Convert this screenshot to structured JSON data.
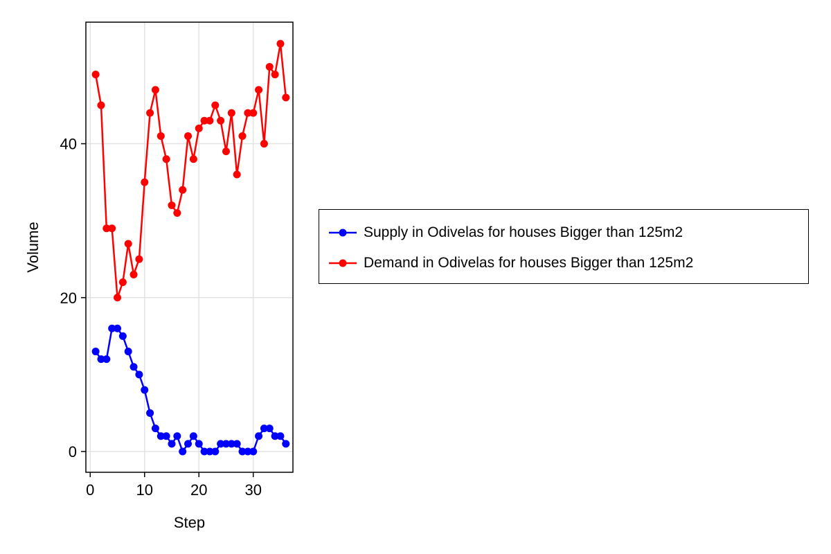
{
  "chart_data": {
    "type": "line",
    "title": "",
    "xlabel": "Step",
    "ylabel": "Volume",
    "xlim": [
      -0.8,
      37.3
    ],
    "ylim": [
      -2.7,
      55.8
    ],
    "xticks": [
      0,
      10,
      20,
      30
    ],
    "yticks": [
      0,
      20,
      40
    ],
    "grid": true,
    "legend_position": "right",
    "x": [
      1,
      2,
      3,
      4,
      5,
      6,
      7,
      8,
      9,
      10,
      11,
      12,
      13,
      14,
      15,
      16,
      17,
      18,
      19,
      20,
      21,
      22,
      23,
      24,
      25,
      26,
      27,
      28,
      29,
      30,
      31,
      32,
      33,
      34,
      35,
      36
    ],
    "series": [
      {
        "name": "Supply in Odivelas for houses Bigger than 125m2",
        "color": "#0000ff",
        "values": [
          13,
          12,
          12,
          16,
          16,
          15,
          13,
          11,
          10,
          8,
          5,
          3,
          2,
          2,
          1,
          2,
          0,
          1,
          2,
          1,
          0,
          0,
          0,
          1,
          1,
          1,
          1,
          0,
          0,
          0,
          2,
          3,
          3,
          2,
          2,
          1
        ]
      },
      {
        "name": "Demand in Odivelas for houses Bigger than 125m2",
        "color": "#ff0000",
        "values": [
          49,
          45,
          29,
          29,
          20,
          22,
          27,
          23,
          25,
          35,
          44,
          47,
          41,
          38,
          32,
          31,
          34,
          41,
          38,
          42,
          43,
          43,
          45,
          43,
          39,
          44,
          36,
          41,
          44,
          44,
          47,
          40,
          50,
          49,
          53,
          46
        ]
      }
    ]
  }
}
